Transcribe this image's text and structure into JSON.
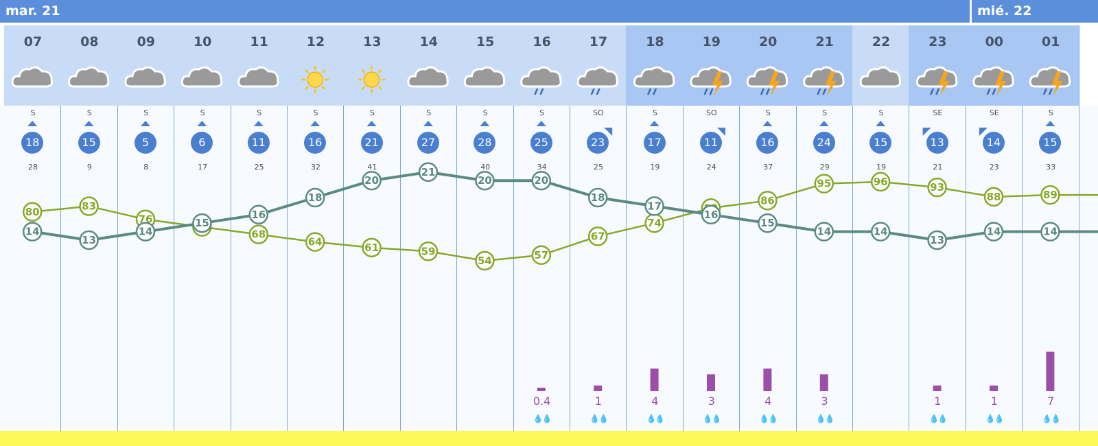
{
  "days": [
    "mar. 21",
    "mié. 22"
  ],
  "hours": [
    "07",
    "08",
    "09",
    "10",
    "11",
    "12",
    "13",
    "14",
    "15",
    "16",
    "17",
    "18",
    "19",
    "20",
    "21",
    "22",
    "23",
    "00",
    "01"
  ],
  "weather_icons": [
    "cloud-icon",
    "cloud-icon",
    "cloud-icon",
    "cloud-icon",
    "cloud-icon",
    "sun-icon",
    "sun-icon",
    "cloud-icon",
    "cloud-icon",
    "rain-cloud-icon",
    "rain-cloud-icon",
    "rain-cloud-icon",
    "storm-cloud-icon",
    "storm-cloud-icon",
    "storm-cloud-icon",
    "cloud-icon",
    "storm-cloud-icon",
    "storm-cloud-icon",
    "storm-cloud-icon"
  ],
  "wind_dirs": [
    "S",
    "S",
    "S",
    "S",
    "S",
    "S",
    "S",
    "S",
    "S",
    "S",
    "SO",
    "S",
    "SO",
    "S",
    "S",
    "S",
    "SE",
    "SE",
    "S"
  ],
  "wind_speeds": [
    "18",
    "15",
    "5",
    "6",
    "11",
    "16",
    "21",
    "27",
    "28",
    "25",
    "23",
    "17",
    "11",
    "16",
    "24",
    "15",
    "13",
    "14",
    "15"
  ],
  "gusts": [
    "28",
    "9",
    "8",
    "17",
    "25",
    "32",
    "41",
    "43",
    "40",
    "34",
    "25",
    "19",
    "24",
    "37",
    "29",
    "19",
    "21",
    "23",
    "33"
  ],
  "precip_labels": [
    "",
    "",
    "",
    "",
    "",
    "",
    "",
    "",
    "",
    "0.4",
    "1",
    "4",
    "3",
    "4",
    "3",
    "",
    "1",
    "1",
    "7"
  ],
  "colors": {
    "day_bar": "#5b8fdb",
    "temperature": "#5a8a84",
    "humidity": "#86a82a",
    "precip": "#9b4fa8",
    "wind": "#4a7fcf",
    "bottom_bar": "#fbf955"
  },
  "chart_data": {
    "type": "line",
    "x": [
      "07",
      "08",
      "09",
      "10",
      "11",
      "12",
      "13",
      "14",
      "15",
      "16",
      "17",
      "18",
      "19",
      "20",
      "21",
      "22",
      "23",
      "00",
      "01"
    ],
    "series": [
      {
        "values": [
          14,
          13,
          14,
          15,
          16,
          18,
          20,
          21,
          20,
          20,
          18,
          17,
          16,
          15,
          14,
          14,
          13,
          14,
          14
        ]
      },
      {
        "values": [
          80,
          83,
          76,
          72,
          68,
          64,
          61,
          59,
          54,
          57,
          67,
          74,
          82,
          86,
          95,
          96,
          93,
          88,
          89
        ]
      },
      {
        "values": [
          0,
          0,
          0,
          0,
          0,
          0,
          0,
          0,
          0,
          0.4,
          1,
          4,
          3,
          4,
          3,
          0,
          1,
          1,
          7
        ]
      }
    ]
  }
}
